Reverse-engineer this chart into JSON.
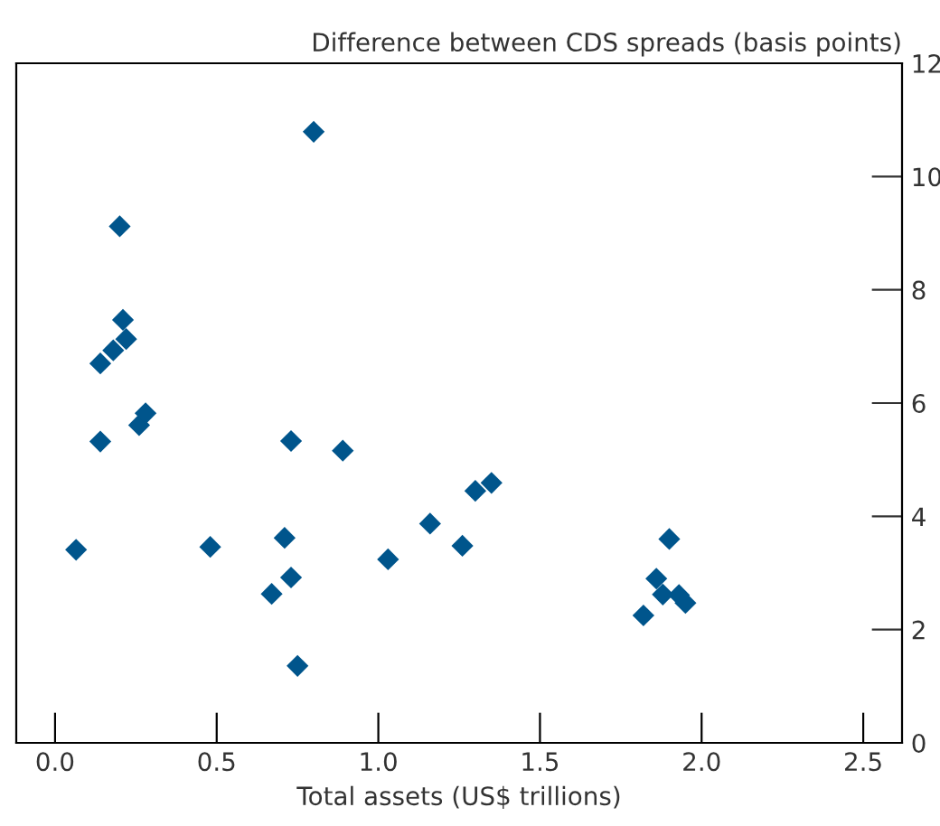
{
  "chart_data": {
    "type": "scatter",
    "xlabel": "Total assets (US$ trillions)",
    "ylabel": "Difference between CDS spreads (basis points)",
    "x": [
      0.065,
      0.14,
      0.14,
      0.18,
      0.2,
      0.21,
      0.22,
      0.26,
      0.28,
      0.48,
      0.67,
      0.71,
      0.73,
      0.73,
      0.75,
      0.8,
      0.89,
      1.03,
      1.16,
      1.26,
      1.3,
      1.35,
      1.82,
      1.86,
      1.88,
      1.9,
      1.93,
      1.95
    ],
    "series": [
      {
        "color": "#00558c",
        "values": [
          3.41,
          5.32,
          6.7,
          6.93,
          9.12,
          7.47,
          7.13,
          5.61,
          5.82,
          3.46,
          2.63,
          3.62,
          2.92,
          5.33,
          1.36,
          10.79,
          5.16,
          3.24,
          3.87,
          3.48,
          4.45,
          4.59,
          2.25,
          2.9,
          2.62,
          3.6,
          2.61,
          2.47
        ]
      }
    ],
    "marker": "diamond",
    "grid": false,
    "legend": false,
    "xlim": [
      -0.12,
      2.62
    ],
    "ylim": [
      0,
      12
    ],
    "xticks": [
      {
        "value": 0,
        "label": "0.0"
      },
      0.5,
      {
        "value": 1,
        "label": "1.0"
      },
      1.5,
      {
        "value": 2,
        "label": "2.0"
      },
      2.5
    ],
    "yticks": [
      0,
      2,
      4,
      6,
      8,
      10,
      12
    ]
  }
}
